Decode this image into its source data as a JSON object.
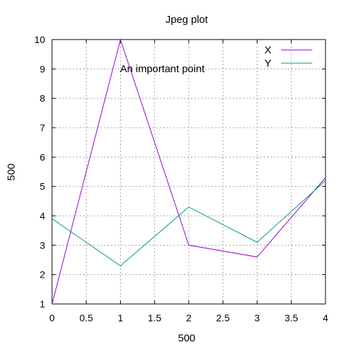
{
  "chart_data": {
    "type": "line",
    "title": "Jpeg plot",
    "xlabel": "500",
    "ylabel": "500",
    "xlim": [
      0,
      4
    ],
    "ylim": [
      1,
      10
    ],
    "xticks": [
      "0",
      "0.5",
      "1",
      "1.5",
      "2",
      "2.5",
      "3",
      "3.5",
      "4"
    ],
    "yticks": [
      "1",
      "2",
      "3",
      "4",
      "5",
      "6",
      "7",
      "8",
      "9",
      "10"
    ],
    "grid": true,
    "legend_position": "top-right",
    "annotation": {
      "text": "An important point",
      "x": 1.0,
      "y": 9.0
    },
    "series": [
      {
        "name": "X",
        "color": "#9400d3",
        "x": [
          0,
          1,
          2,
          3,
          4
        ],
        "y": [
          1.0,
          10.0,
          3.0,
          2.6,
          5.3
        ]
      },
      {
        "name": "Y",
        "color": "#009e73",
        "x": [
          0,
          1,
          2,
          3,
          4
        ],
        "y": [
          3.9,
          2.3,
          4.3,
          3.1,
          5.2
        ]
      }
    ]
  }
}
